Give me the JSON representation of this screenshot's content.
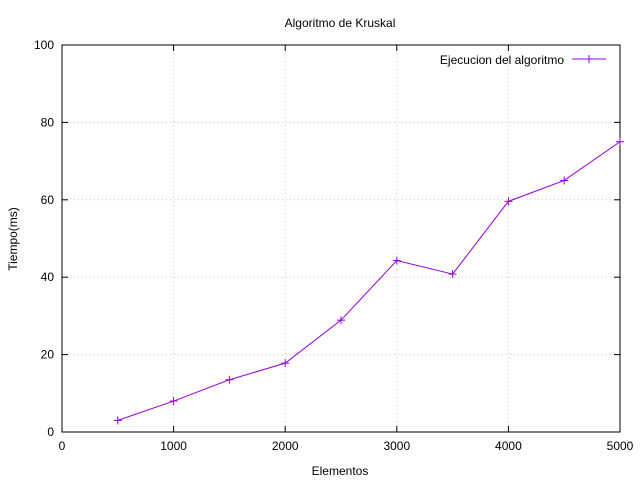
{
  "chart_data": {
    "type": "line",
    "title": "Algoritmo de Kruskal",
    "xlabel": "Elementos",
    "ylabel": "Tiempo(ms)",
    "xlim": [
      0,
      5000
    ],
    "ylim": [
      0,
      100
    ],
    "xticks": [
      0,
      1000,
      2000,
      3000,
      4000,
      5000
    ],
    "yticks": [
      0,
      20,
      40,
      60,
      80,
      100
    ],
    "grid": true,
    "legend_position": "top-right",
    "series": [
      {
        "name": "Ejecucion del algoritmo",
        "color": "#9400d3",
        "marker": "plus",
        "x": [
          500,
          1000,
          1500,
          2000,
          2500,
          3000,
          3500,
          4000,
          4500,
          5000
        ],
        "y": [
          3,
          8,
          13.5,
          17.8,
          28.9,
          44.3,
          40.8,
          59.6,
          65,
          75
        ]
      }
    ]
  }
}
